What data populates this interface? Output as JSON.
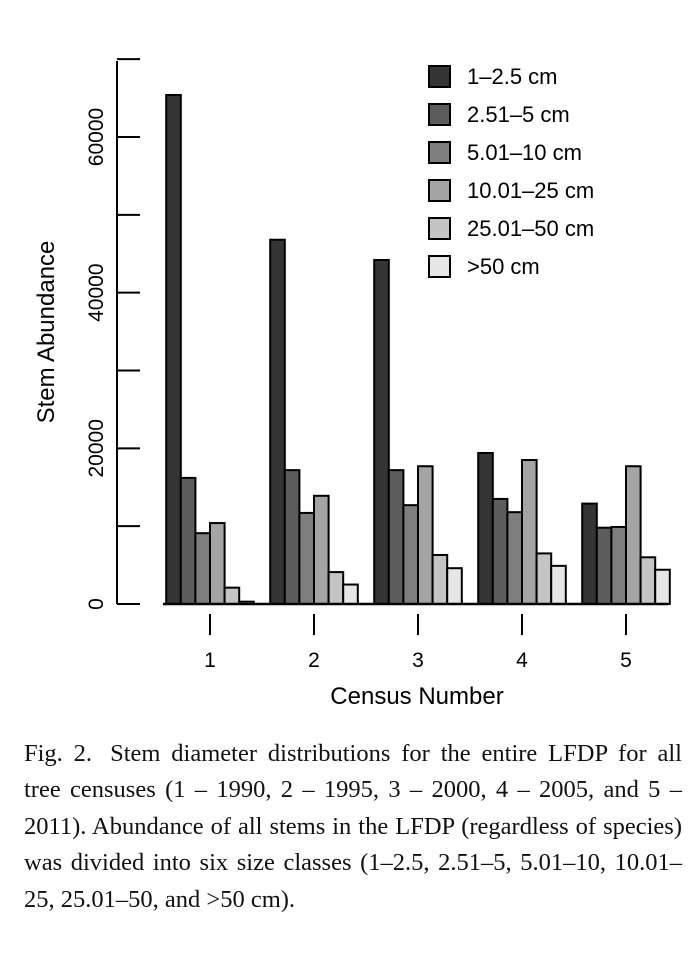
{
  "chart_data": {
    "type": "bar",
    "categories": [
      "1",
      "2",
      "3",
      "4",
      "5"
    ],
    "xlabel": "Census Number",
    "ylabel": "Stem Abundance",
    "ylim": [
      0,
      70000
    ],
    "yticks": [
      "0",
      "20000",
      "40000",
      "60000"
    ],
    "legend_position": "top-right",
    "grid": false,
    "series": [
      {
        "name": "1–2.5 cm",
        "color": "#353535",
        "values": [
          65400,
          46800,
          44200,
          19400,
          12900
        ]
      },
      {
        "name": "2.51–5 cm",
        "color": "#5c5c5c",
        "values": [
          16200,
          17200,
          17200,
          13500,
          9800
        ]
      },
      {
        "name": "5.01–10 cm",
        "color": "#7e7e7e",
        "values": [
          9100,
          11700,
          12700,
          11800,
          9900
        ]
      },
      {
        "name": "10.01–25 cm",
        "color": "#a4a4a4",
        "values": [
          10400,
          13900,
          17700,
          18500,
          17700
        ]
      },
      {
        "name": "25.01–50 cm",
        "color": "#c4c4c4",
        "values": [
          2100,
          4100,
          6300,
          6500,
          6000
        ]
      },
      {
        "name": ">50 cm",
        "color": "#e6e6e6",
        "values": [
          300,
          2500,
          4600,
          4900,
          4400
        ]
      }
    ]
  },
  "caption": {
    "label": "Fig. 2.",
    "text": "Stem diameter distributions for the entire LFDP for all tree censuses (1 – 1990, 2 – 1995, 3 – 2000, 4 – 2005, and 5 – 2011). Abundance of all stems in the LFDP (regardless of species) was divided into six size classes (1–2.5, 2.51–5, 5.01–10, 10.01–25, 25.01–50, and >50 cm)."
  }
}
